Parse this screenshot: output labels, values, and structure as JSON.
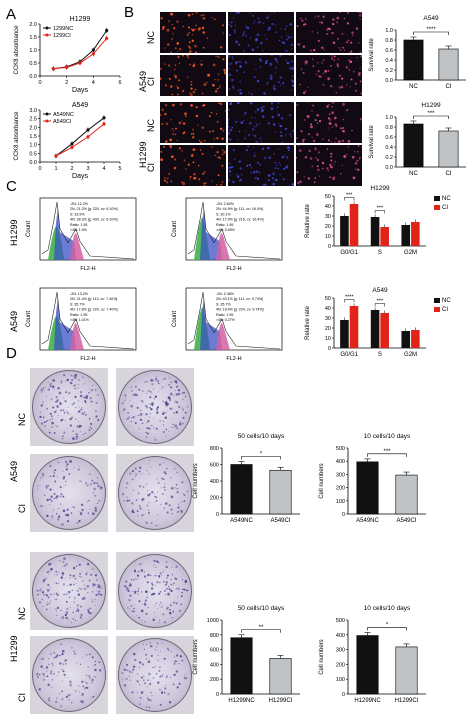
{
  "panels": {
    "A": "A",
    "B": "B",
    "C": "C",
    "D": "D"
  },
  "A": {
    "charts": [
      {
        "title": "H1299",
        "xlabel": "Days",
        "ylabel": "CCK8 absorbance",
        "legend": [
          "1299NC",
          "1299CI"
        ],
        "xticks": [
          "0",
          "2",
          "4",
          "6"
        ],
        "yticks": [
          "0.0",
          "0.5",
          "1.0",
          "1.5",
          "2.0"
        ]
      },
      {
        "title": "A549",
        "xlabel": "Days",
        "ylabel": "CCK8 absorbance",
        "legend": [
          "A549NC",
          "A549CI"
        ],
        "xticks": [
          "0",
          "1",
          "2",
          "3",
          "4",
          "5"
        ],
        "yticks": [
          "0.0",
          "0.5",
          "1.0",
          "1.5",
          "2.0",
          "2.5",
          "3.0"
        ]
      }
    ]
  },
  "B": {
    "row_groups": [
      "A549",
      "H1299"
    ],
    "row_labels": [
      "NC",
      "CI",
      "NC",
      "CI"
    ],
    "charts": [
      {
        "title": "A549",
        "ylabel": "Survival rate",
        "categories": [
          "NC",
          "CI"
        ],
        "sig": "****",
        "yticks": [
          "0.0",
          "0.2",
          "0.4",
          "0.6",
          "0.8",
          "1.0"
        ]
      },
      {
        "title": "H1299",
        "ylabel": "Survival rate",
        "categories": [
          "NC",
          "CI"
        ],
        "sig": "***",
        "yticks": [
          "0.0",
          "0.2",
          "0.4",
          "0.6",
          "0.8",
          "1.0"
        ]
      }
    ]
  },
  "C": {
    "row_labels": [
      "H1299",
      "A549"
    ],
    "flow_xlabel": "FL2-H",
    "flow_ylabel": "Count",
    "flow_stats": [
      [
        "-2N: 12.2%",
        "2N: 21.2% [g: 220, cv: 6.10%]",
        "S: 33.9%",
        "4N: 38.3% [g: 430, cv: 6.10%]",
        "Ratio: 1.95",
        ">4N: 1.9%"
      ],
      [
        "-2N: 2.60%",
        "2N: 44.9% [g: 111, cv: 16.4%]",
        "S: 30.1%",
        "4N: 17.9% [g: 216, cv: 16.4%]",
        "Ratio: 1.95",
        ">4N: 0.45%"
      ],
      [
        "-2N: 13.2%",
        "2N: 21.4% [g: 113, cv: 7.40%]",
        "S: 35.7%",
        "4N: 17.8% [g: 220, cv: 7.40%]",
        "Ratio: 1.95",
        ">4N: 1.01%"
      ],
      [
        "-2N: 2.46%",
        "2N: 43.1% [g: 111, cv: 9.74%]",
        "S: 35.7%",
        "4N: 19.4% [g: 224, cv: 9.74%]",
        "Ratio: 1.95",
        ">4N: 0.27%"
      ]
    ],
    "charts": [
      {
        "title": "H1299",
        "ylabel": "Relative rate",
        "categories": [
          "G0/G1",
          "S",
          "G2M"
        ],
        "legend": [
          "NC",
          "CI"
        ],
        "sig": [
          "***",
          "***"
        ],
        "yticks": [
          "0",
          "10",
          "20",
          "30",
          "40",
          "50"
        ]
      },
      {
        "title": "A549",
        "ylabel": "Relative rate",
        "categories": [
          "G0/G1",
          "S",
          "G2M"
        ],
        "legend": [
          "NC",
          "CI"
        ],
        "sig": [
          "****",
          "***"
        ],
        "yticks": [
          "0",
          "10",
          "20",
          "30",
          "40",
          "50"
        ]
      }
    ]
  },
  "D": {
    "row_groups": [
      "A549",
      "H1299"
    ],
    "row_labels": [
      "NC",
      "CI",
      "NC",
      "CI"
    ],
    "charts": [
      {
        "title": "50 cells/10 days",
        "ylabel": "Cell numbers",
        "categories": [
          "A549NC",
          "A549CI"
        ],
        "sig": "*",
        "yticks": [
          "0",
          "200",
          "400",
          "600",
          "800"
        ]
      },
      {
        "title": "10 cells/10 days",
        "ylabel": "Cell numbers",
        "categories": [
          "A549NC",
          "A549CI"
        ],
        "sig": "***",
        "yticks": [
          "0",
          "100",
          "200",
          "300",
          "400",
          "500"
        ]
      },
      {
        "title": "50 cells/10 days",
        "ylabel": "Cell numbers",
        "categories": [
          "H1299NC",
          "H1299CI"
        ],
        "sig": "**",
        "yticks": [
          "0",
          "200",
          "400",
          "600",
          "800",
          "1000"
        ]
      },
      {
        "title": "10 cells/10 days",
        "ylabel": "Cell numbers",
        "categories": [
          "H1299NC",
          "H1299CI"
        ],
        "sig": "*",
        "yticks": [
          "0",
          "100",
          "200",
          "300",
          "400",
          "500"
        ]
      }
    ]
  },
  "colors": {
    "nc": "#111111",
    "ci": "#e2231a",
    "ci_bar": "#bfc3c6",
    "purple": "#4b3f8c"
  },
  "chart_data": [
    {
      "type": "line",
      "title": "H1299",
      "xlabel": "Days",
      "ylabel": "CCK8 absorbance",
      "xlim": [
        0,
        6
      ],
      "ylim": [
        0,
        2.0
      ],
      "series": [
        {
          "name": "1299NC",
          "x": [
            1,
            2,
            3,
            4,
            5
          ],
          "y": [
            0.28,
            0.35,
            0.55,
            1.0,
            1.75
          ]
        },
        {
          "name": "1299CI",
          "x": [
            1,
            2,
            3,
            4,
            5
          ],
          "y": [
            0.28,
            0.33,
            0.5,
            0.85,
            1.45
          ]
        }
      ]
    },
    {
      "type": "line",
      "title": "A549",
      "xlabel": "Days",
      "ylabel": "CCK8 absorbance",
      "xlim": [
        0,
        5
      ],
      "ylim": [
        0,
        3.0
      ],
      "series": [
        {
          "name": "A549NC",
          "x": [
            1,
            2,
            3,
            4
          ],
          "y": [
            0.35,
            1.05,
            1.85,
            2.55
          ]
        },
        {
          "name": "A549CI",
          "x": [
            1,
            2,
            3,
            4
          ],
          "y": [
            0.35,
            0.85,
            1.45,
            2.2
          ]
        }
      ]
    },
    {
      "type": "bar",
      "title": "A549",
      "ylabel": "Survival rate",
      "categories": [
        "NC",
        "CI"
      ],
      "values": [
        0.8,
        0.62
      ],
      "ylim": [
        0,
        1.0
      ]
    },
    {
      "type": "bar",
      "title": "H1299",
      "ylabel": "Survival rate",
      "categories": [
        "NC",
        "CI"
      ],
      "values": [
        0.86,
        0.72
      ],
      "ylim": [
        0,
        1.0
      ]
    },
    {
      "type": "bar",
      "title": "H1299",
      "ylabel": "Relative rate",
      "categories": [
        "G0/G1",
        "S",
        "G2M"
      ],
      "ylim": [
        0,
        50
      ],
      "series": [
        {
          "name": "NC",
          "values": [
            30,
            29,
            21
          ]
        },
        {
          "name": "CI",
          "values": [
            42,
            19,
            24
          ]
        }
      ]
    },
    {
      "type": "bar",
      "title": "A549",
      "ylabel": "Relative rate",
      "categories": [
        "G0/G1",
        "S",
        "G2M"
      ],
      "ylim": [
        0,
        50
      ],
      "series": [
        {
          "name": "NC",
          "values": [
            28,
            38,
            17
          ]
        },
        {
          "name": "CI",
          "values": [
            42,
            35,
            18
          ]
        }
      ]
    },
    {
      "type": "bar",
      "title": "50 cells/10 days",
      "ylabel": "Cell numbers",
      "categories": [
        "A549NC",
        "A549CI"
      ],
      "values": [
        600,
        530
      ],
      "ylim": [
        0,
        800
      ]
    },
    {
      "type": "bar",
      "title": "10 cells/10 days",
      "ylabel": "Cell numbers",
      "categories": [
        "A549NC",
        "A549CI"
      ],
      "values": [
        395,
        295
      ],
      "ylim": [
        0,
        500
      ]
    },
    {
      "type": "bar",
      "title": "50 cells/10 days",
      "ylabel": "Cell numbers",
      "categories": [
        "H1299NC",
        "H1299CI"
      ],
      "values": [
        760,
        480
      ],
      "ylim": [
        0,
        1000
      ]
    },
    {
      "type": "bar",
      "title": "10 cells/10 days",
      "ylabel": "Cell numbers",
      "categories": [
        "H1299NC",
        "H1299CI"
      ],
      "values": [
        395,
        318
      ],
      "ylim": [
        0,
        500
      ]
    }
  ]
}
